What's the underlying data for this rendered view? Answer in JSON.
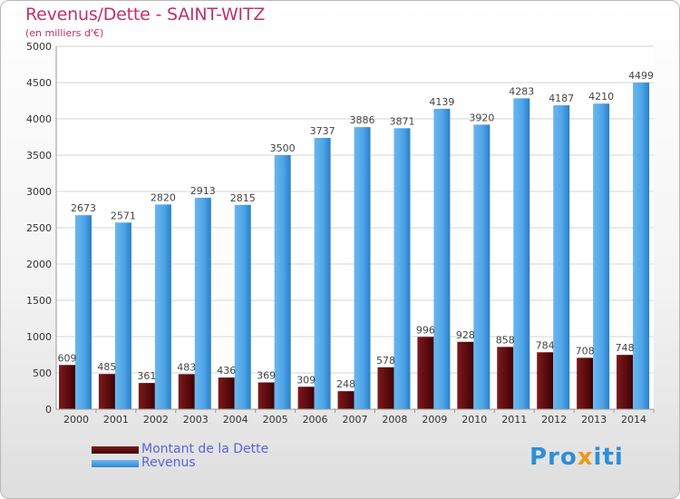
{
  "title": "Revenus/Dette - SAINT-WITZ",
  "subtitle": "(en milliers d'€)",
  "logo": "Proxiti",
  "legend": {
    "debt_label": "Montant de la Dette",
    "revenue_label": "Revenus"
  },
  "colors": {
    "title": "#c0306b",
    "debt": "#5a0a0d",
    "revenue": "#4ba3e6",
    "legend_text": "#5a63d8"
  },
  "chart_data": {
    "type": "bar",
    "categories": [
      "2000",
      "2001",
      "2002",
      "2003",
      "2004",
      "2005",
      "2006",
      "2007",
      "2008",
      "2009",
      "2010",
      "2011",
      "2012",
      "2013",
      "2014"
    ],
    "series": [
      {
        "name": "Montant de la Dette",
        "values": [
          609,
          485,
          361,
          483,
          436,
          369,
          309,
          248,
          578,
          996,
          928,
          858,
          784,
          708,
          748
        ]
      },
      {
        "name": "Revenus",
        "values": [
          2673,
          2571,
          2820,
          2913,
          2815,
          3500,
          3737,
          3886,
          3871,
          4139,
          3920,
          4283,
          4187,
          4210,
          4499
        ]
      }
    ],
    "yticks": [
      0,
      500,
      1000,
      1500,
      2000,
      2500,
      3000,
      3500,
      4000,
      4500,
      5000
    ],
    "ylim": [
      0,
      5000
    ],
    "grid": true,
    "legend_position": "bottom-left"
  }
}
